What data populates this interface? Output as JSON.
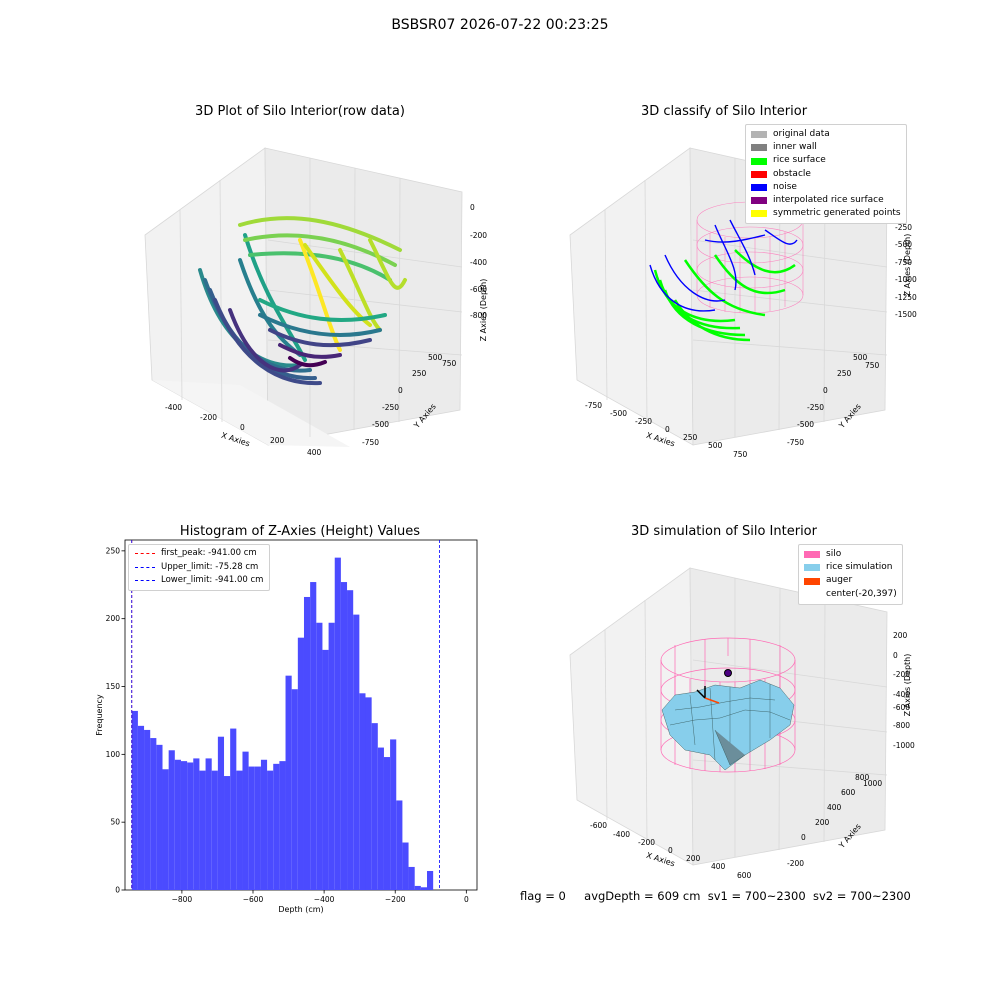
{
  "suptitle": "BSBSR07 2026-07-22 00:23:25",
  "status": {
    "flag": "flag = 0",
    "avg_depth": "avgDepth = 609 cm",
    "sv1": "sv1 = 700~2300",
    "sv2": "sv2 = 700~2300"
  },
  "chart_data": [
    {
      "type": "scatter",
      "title": "3D Plot of Silo Interior(row data)",
      "xlabel": "X Axies",
      "ylabel": "Y Axies",
      "zlabel": "Z Axies (Depth)",
      "x_ticks": [
        "-400",
        "-200",
        "0",
        "200",
        "400"
      ],
      "y_ticks": [
        "-750",
        "-500",
        "-250",
        "0",
        "250",
        "500",
        "750"
      ],
      "z_ticks": [
        "0",
        "-200",
        "-400",
        "-600",
        "-800"
      ],
      "colormap": "viridis"
    },
    {
      "type": "scatter",
      "title": "3D classify of Silo Interior",
      "xlabel": "X Axies",
      "ylabel": "Y Axies",
      "zlabel": "Z Axies (Depth)",
      "x_ticks": [
        "-750",
        "-500",
        "-250",
        "0",
        "250",
        "500",
        "750"
      ],
      "y_ticks": [
        "-750",
        "-500",
        "-250",
        "0",
        "250",
        "500",
        "750"
      ],
      "z_ticks": [
        "0",
        "-250",
        "-500",
        "-750",
        "-1000",
        "-1250",
        "-1500"
      ],
      "legend": [
        {
          "label": "original data",
          "color": "#b3b3b3"
        },
        {
          "label": "inner wall",
          "color": "#808080"
        },
        {
          "label": "rice surface",
          "color": "#00ff00"
        },
        {
          "label": "obstacle",
          "color": "#ff0000"
        },
        {
          "label": "noise",
          "color": "#0000ff"
        },
        {
          "label": "interpolated rice surface",
          "color": "#800080"
        },
        {
          "label": "symmetric generated points",
          "color": "#ffff00"
        }
      ],
      "cylinder_color": "#ff69b4"
    },
    {
      "type": "bar",
      "title": "Histogram of Z-Axies (Height) Values",
      "xlabel": "Depth (cm)",
      "ylabel": "Frequency",
      "xlim": [
        -960,
        30
      ],
      "ylim": [
        0,
        258
      ],
      "x_ticks": [
        -800,
        -600,
        -400,
        -200,
        0
      ],
      "x_tick_labels": [
        "−800",
        "−600",
        "−400",
        "−200",
        "0"
      ],
      "y_ticks": [
        0,
        50,
        100,
        150,
        200,
        250
      ],
      "y_tick_labels": [
        "0",
        "50",
        "100",
        "150",
        "200",
        "250"
      ],
      "bin_start": -941.0,
      "bin_width": 17.3,
      "values": [
        132,
        121,
        118,
        112,
        107,
        89,
        103,
        96,
        95,
        94,
        97,
        88,
        97,
        88,
        113,
        84,
        119,
        88,
        102,
        91,
        91,
        96,
        88,
        93,
        95,
        158,
        148,
        186,
        216,
        227,
        197,
        177,
        197,
        245,
        227,
        221,
        203,
        145,
        142,
        123,
        105,
        98,
        111,
        66,
        35,
        17,
        3,
        2,
        14
      ],
      "bar_color": "#4b4bff",
      "vlines": [
        {
          "label": "first_peak: -941.00 cm",
          "value": -941.0,
          "color": "#ff0000"
        },
        {
          "label": "Upper_limit: -75.28 cm",
          "value": -75.28,
          "color": "#0000ff"
        },
        {
          "label": "Lower_limit: -941.00 cm",
          "value": -941.0,
          "color": "#0000ff"
        }
      ]
    },
    {
      "type": "scatter",
      "title": "3D simulation of Silo Interior",
      "xlabel": "X Axies",
      "ylabel": "Y Axies",
      "zlabel": "Z Axies (Depth)",
      "x_ticks": [
        "-600",
        "-400",
        "-200",
        "0",
        "200",
        "400",
        "600"
      ],
      "y_ticks": [
        "-200",
        "0",
        "200",
        "400",
        "600",
        "800",
        "1000"
      ],
      "z_ticks": [
        "200",
        "0",
        "-200",
        "-400",
        "-600",
        "-800",
        "-1000"
      ],
      "legend": [
        {
          "label": "silo",
          "color": "#ff69b4"
        },
        {
          "label": "rice simulation",
          "color": "#87ceeb"
        },
        {
          "label": "auger",
          "color": "#ff4500"
        },
        {
          "label": "center(-20,397)",
          "color": ""
        }
      ]
    }
  ]
}
